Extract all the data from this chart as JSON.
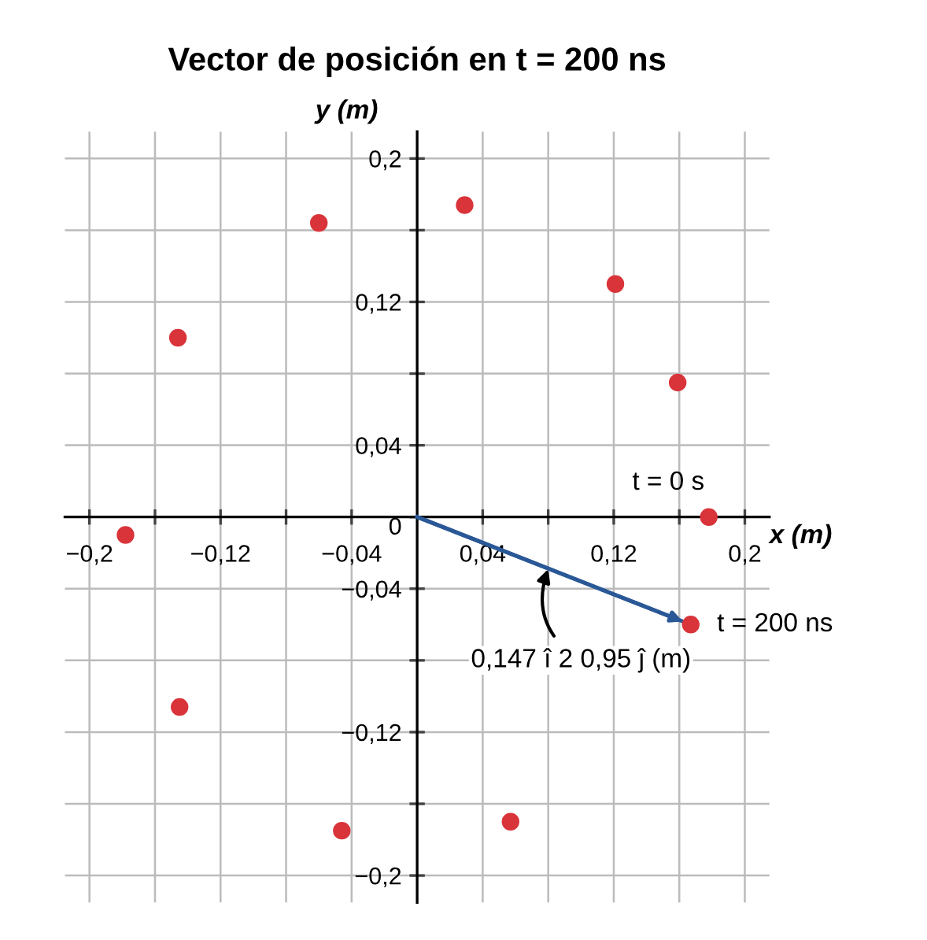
{
  "chart_data": {
    "type": "scatter",
    "title": "Vector de posición en t = 200 ns",
    "xlabel": "x (m)",
    "ylabel": "y (m)",
    "x": [
      0.178,
      0.159,
      0.121,
      0.029,
      -0.06,
      -0.146,
      -0.178,
      -0.145,
      -0.046,
      0.057,
      0.167
    ],
    "series": [
      {
        "color": "#d9343a",
        "marker": "circle",
        "values": [
          0.0,
          0.075,
          0.13,
          0.174,
          0.164,
          0.1,
          -0.01,
          -0.106,
          -0.175,
          -0.17,
          -0.06
        ]
      },
      {
        "type": "line",
        "marker": "none",
        "color": "#2a5896",
        "x": [
          0,
          0.167
        ],
        "values": [
          0,
          -0.06
        ]
      }
    ],
    "xlim": [
      -0.215,
      0.215
    ],
    "ylim": [
      -0.215,
      0.215
    ],
    "xticks": [
      {
        "value": -0.2,
        "label": "−0,2"
      },
      {
        "value": -0.16,
        "label": null
      },
      {
        "value": -0.12,
        "label": "−0,12"
      },
      {
        "value": -0.08,
        "label": null
      },
      {
        "value": -0.04,
        "label": "−0,04"
      },
      {
        "value": 0.04,
        "label": "0,04"
      },
      {
        "value": 0.08,
        "label": null
      },
      {
        "value": 0.12,
        "label": "0,12"
      },
      {
        "value": 0.16,
        "label": null
      },
      {
        "value": 0.2,
        "label": "0,2"
      }
    ],
    "yticks": [
      {
        "value": -0.2,
        "label": "−0,2"
      },
      {
        "value": -0.16,
        "label": null
      },
      {
        "value": -0.12,
        "label": "−0,12"
      },
      {
        "value": -0.08,
        "label": null
      },
      {
        "value": -0.04,
        "label": "−0,04"
      },
      {
        "value": 0,
        "label": "0"
      },
      {
        "value": 0.04,
        "label": "0,04"
      },
      {
        "value": 0.08,
        "label": null
      },
      {
        "value": 0.12,
        "label": "0,12"
      },
      {
        "value": 0.16,
        "label": null
      },
      {
        "value": 0.2,
        "label": "0,2"
      }
    ],
    "grid": true,
    "annotations": [
      {
        "text": "t = 0 s",
        "x": 0.178,
        "y": 0.0
      },
      {
        "text": "t = 200 ns",
        "x": 0.167,
        "y": -0.06
      },
      {
        "text": "0,147 î 2 0,95 ĵ (m)",
        "x": 0.08,
        "y": -0.029
      }
    ]
  }
}
